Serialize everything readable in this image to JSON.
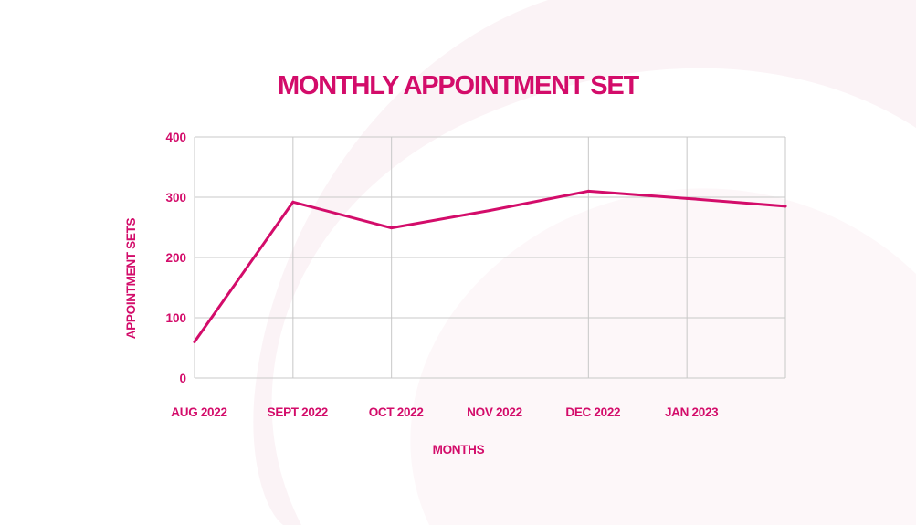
{
  "chart_data": {
    "type": "line",
    "title": "MONTHLY APPOINTMENT SET",
    "xlabel": "MONTHS",
    "ylabel": "APPOINTMENT SETS",
    "categories": [
      "AUG 2022",
      "SEPT 2022",
      "OCT 2022",
      "NOV 2022",
      "DEC 2022",
      "JAN 2023",
      ""
    ],
    "series": [
      {
        "values": [
          60,
          292,
          249,
          278,
          310,
          298,
          285
        ]
      }
    ],
    "ylim": [
      0,
      400
    ],
    "yticks": [
      0,
      100,
      200,
      300,
      400
    ],
    "grid": true,
    "line_color": "#d30c6a",
    "grid_color": "#c8c8c8",
    "text_color": "#d30c6a"
  }
}
